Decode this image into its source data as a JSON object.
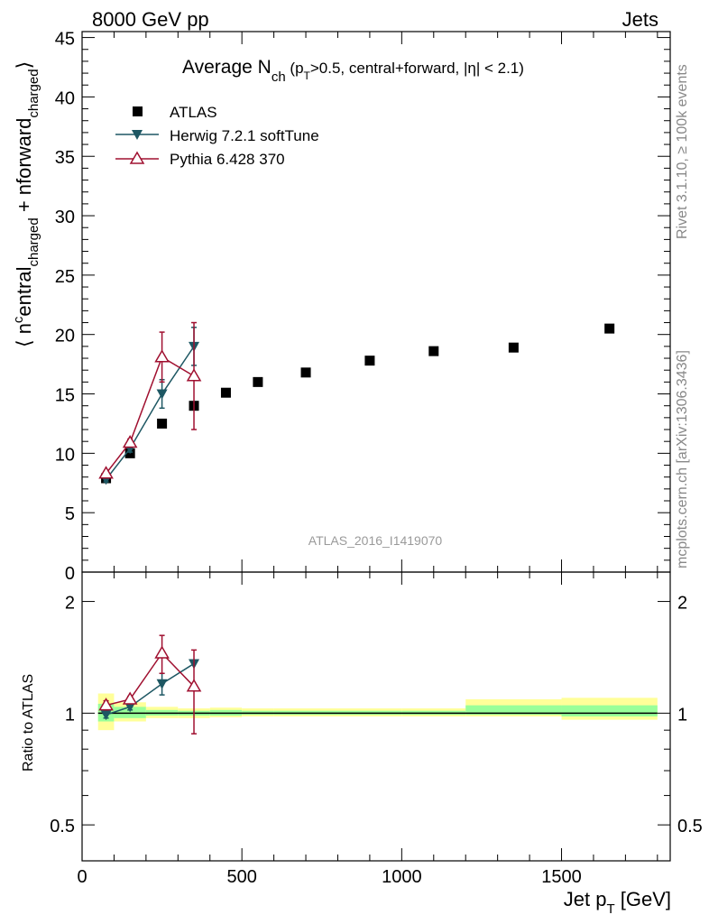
{
  "header": {
    "left": "8000 GeV pp",
    "right": "Jets"
  },
  "side_labels": {
    "rivet": "Rivet 3.1.10, ≥ 100k events",
    "arxiv": "mcplots.cern.ch [arXiv:1306.3436]"
  },
  "chart_data": [
    {
      "type": "scatter",
      "title": "Average N_ch (p_T>0.5, central+forward, |η| < 2.1)",
      "title_parts": {
        "main": "Average N",
        "sub": "ch",
        "rest_open": " (p",
        "rest_sub": "T",
        "rest_close": ">0.5, central+forward, |η| < 2.1)"
      },
      "ylabel": "⟨ n^central_charged + n^forward_charged ⟩",
      "ylabel_parts": {
        "open": "⟨ n",
        "sup": "c",
        "a": "entral",
        "sub1": "charged",
        "b": " + n",
        "c": "forward",
        "sub2": "charged",
        "close": "⟩"
      },
      "watermark": "ATLAS_2016_I1419070",
      "xlim": [
        0,
        1840
      ],
      "ylim": [
        0,
        45.5
      ],
      "yticks": [
        "0",
        "5",
        "10",
        "15",
        "20",
        "25",
        "30",
        "35",
        "40",
        "45"
      ],
      "legend_position": "top-left",
      "series": [
        {
          "name": "ATLAS",
          "color": "#000000",
          "marker": "square",
          "x": [
            75,
            150,
            250,
            350,
            450,
            550,
            700,
            900,
            1100,
            1350,
            1650
          ],
          "y": [
            7.9,
            10.0,
            12.5,
            14.0,
            15.1,
            16.0,
            16.8,
            17.8,
            18.6,
            18.9,
            20.5
          ]
        },
        {
          "name": "Herwig 7.2.1 softTune",
          "color": "#1d5763",
          "marker": "triangle-down",
          "x": [
            75,
            150,
            250,
            350
          ],
          "y": [
            7.8,
            10.4,
            15.0,
            19.0
          ],
          "err": [
            0.2,
            0.3,
            1.2,
            1.6
          ]
        },
        {
          "name": "Pythia 6.428 370",
          "color": "#a01030",
          "marker": "triangle-up-open",
          "x": [
            75,
            150,
            250,
            350
          ],
          "y": [
            8.3,
            10.9,
            18.1,
            16.5
          ],
          "err": [
            0.2,
            0.3,
            2.1,
            4.5
          ]
        }
      ]
    },
    {
      "type": "scatter",
      "ylabel": "Ratio to ATLAS",
      "xlabel": "Jet p_T [GeV]",
      "xlabel_parts": {
        "main": "Jet p",
        "sub": "T",
        "rest": " [GeV]"
      },
      "xlim": [
        0,
        1840
      ],
      "ylim": [
        0.4,
        2.4
      ],
      "log_y": true,
      "xticks": [
        "0",
        "500",
        "1000",
        "1500"
      ],
      "yticks": [
        "0.5",
        "1",
        "2"
      ],
      "bands": [
        {
          "x0": 50,
          "x1": 100,
          "yellow": [
            0.9,
            1.13
          ],
          "green": [
            0.95,
            1.06
          ]
        },
        {
          "x0": 100,
          "x1": 200,
          "yellow": [
            0.95,
            1.07
          ],
          "green": [
            0.97,
            1.04
          ]
        },
        {
          "x0": 200,
          "x1": 300,
          "yellow": [
            0.97,
            1.04
          ],
          "green": [
            0.985,
            1.02
          ]
        },
        {
          "x0": 300,
          "x1": 400,
          "yellow": [
            0.97,
            1.03
          ],
          "green": [
            0.985,
            1.015
          ]
        },
        {
          "x0": 400,
          "x1": 500,
          "yellow": [
            0.975,
            1.035
          ],
          "green": [
            0.985,
            1.02
          ]
        },
        {
          "x0": 500,
          "x1": 600,
          "yellow": [
            0.98,
            1.03
          ],
          "green": [
            0.99,
            1.015
          ]
        },
        {
          "x0": 600,
          "x1": 800,
          "yellow": [
            0.98,
            1.03
          ],
          "green": [
            0.99,
            1.015
          ]
        },
        {
          "x0": 800,
          "x1": 1000,
          "yellow": [
            0.98,
            1.03
          ],
          "green": [
            0.99,
            1.015
          ]
        },
        {
          "x0": 1000,
          "x1": 1200,
          "yellow": [
            0.98,
            1.03
          ],
          "green": [
            0.99,
            1.015
          ]
        },
        {
          "x0": 1200,
          "x1": 1500,
          "yellow": [
            0.98,
            1.09
          ],
          "green": [
            0.99,
            1.05
          ]
        },
        {
          "x0": 1500,
          "x1": 1800,
          "yellow": [
            0.96,
            1.1
          ],
          "green": [
            0.98,
            1.05
          ]
        }
      ],
      "series": [
        {
          "name": "Herwig 7.2.1 softTune",
          "color": "#1d5763",
          "marker": "triangle-down",
          "x": [
            75,
            150,
            250,
            350
          ],
          "y": [
            0.99,
            1.04,
            1.2,
            1.36
          ],
          "err": [
            0.02,
            0.02,
            0.08,
            0.0
          ]
        },
        {
          "name": "Pythia 6.428 370",
          "color": "#a01030",
          "marker": "triangle-up-open",
          "x": [
            75,
            150,
            250,
            350
          ],
          "y": [
            1.05,
            1.09,
            1.45,
            1.18
          ],
          "err": [
            0.03,
            0.02,
            0.17,
            0.3
          ]
        }
      ]
    }
  ]
}
